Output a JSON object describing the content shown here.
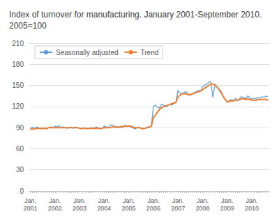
{
  "chart_data": {
    "type": "line",
    "title": "Index of turnover for manufacturing. January 2001-September 2010.\n2005=100",
    "categories": [
      "Jan.\n2001",
      null,
      null,
      null,
      null,
      null,
      null,
      null,
      null,
      null,
      null,
      null,
      "Jan.\n2002",
      null,
      null,
      null,
      null,
      null,
      null,
      null,
      null,
      null,
      null,
      null,
      "Jan.\n2003",
      null,
      null,
      null,
      null,
      null,
      null,
      null,
      null,
      null,
      null,
      null,
      "Jan.\n2004",
      null,
      null,
      null,
      null,
      null,
      null,
      null,
      null,
      null,
      null,
      null,
      "Jan.\n2005",
      null,
      null,
      null,
      null,
      null,
      null,
      null,
      null,
      null,
      null,
      null,
      "Jan.\n2006",
      null,
      null,
      null,
      null,
      null,
      null,
      null,
      null,
      null,
      null,
      null,
      "Jan.\n2007",
      null,
      null,
      null,
      null,
      null,
      null,
      null,
      null,
      null,
      null,
      null,
      "Jan.\n2008",
      null,
      null,
      null,
      null,
      null,
      null,
      null,
      null,
      null,
      null,
      null,
      "Jan.\n2009",
      null,
      null,
      null,
      null,
      null,
      null,
      null,
      null,
      null,
      null,
      null,
      "Jan.\n2010",
      null,
      null,
      null,
      null,
      null,
      null,
      null,
      null
    ],
    "series": [
      {
        "name": "Seasonally adjusted",
        "color": "#5b9bd5",
        "values": [
          88,
          91,
          89,
          91,
          90,
          88,
          89,
          90,
          88,
          90,
          91,
          90,
          92,
          91,
          93,
          90,
          91,
          90,
          89,
          90,
          91,
          89,
          91,
          90,
          89,
          88,
          90,
          89,
          88,
          89,
          90,
          89,
          91,
          90,
          88,
          89,
          92,
          91,
          90,
          93,
          94,
          92,
          91,
          90,
          92,
          91,
          93,
          92,
          93,
          91,
          90,
          88,
          90,
          91,
          89,
          88,
          89,
          91,
          90,
          92,
          120,
          122,
          119,
          118,
          123,
          122,
          120,
          121,
          123,
          122,
          124,
          126,
          143,
          139,
          138,
          140,
          141,
          137,
          136,
          138,
          140,
          141,
          143,
          142,
          148,
          150,
          152,
          154,
          156,
          133,
          150,
          148,
          145,
          142,
          135,
          130,
          126,
          128,
          130,
          128,
          132,
          128,
          131,
          134,
          133,
          131,
          135,
          133,
          130,
          132,
          131,
          133,
          132,
          134,
          133,
          135,
          134
        ]
      },
      {
        "name": "Trend",
        "color": "#ed7d31",
        "values": [
          88,
          88,
          88,
          89,
          89,
          89,
          89,
          89,
          89,
          90,
          90,
          90,
          90,
          90,
          90,
          90,
          90,
          90,
          90,
          90,
          90,
          90,
          90,
          90,
          89,
          89,
          89,
          89,
          89,
          89,
          89,
          89,
          89,
          89,
          89,
          89,
          90,
          90,
          90,
          90,
          91,
          91,
          91,
          91,
          91,
          91,
          92,
          92,
          92,
          92,
          91,
          90,
          90,
          90,
          89,
          89,
          89,
          90,
          91,
          92,
          104,
          108,
          112,
          116,
          118,
          120,
          121,
          122,
          123,
          124,
          125,
          126,
          134,
          136,
          138,
          138,
          138,
          137,
          137,
          138,
          139,
          140,
          141,
          142,
          144,
          146,
          148,
          150,
          152,
          152,
          151,
          148,
          144,
          140,
          135,
          130,
          127,
          127,
          128,
          128,
          129,
          129,
          130,
          131,
          131,
          130,
          131,
          130,
          129,
          129,
          129,
          130,
          130,
          130,
          130,
          130,
          129
        ]
      }
    ],
    "ylim": [
      0,
      210
    ],
    "yticks": [
      0,
      30,
      60,
      90,
      120,
      150,
      180,
      210
    ],
    "grid": true,
    "legend": "upper left"
  }
}
